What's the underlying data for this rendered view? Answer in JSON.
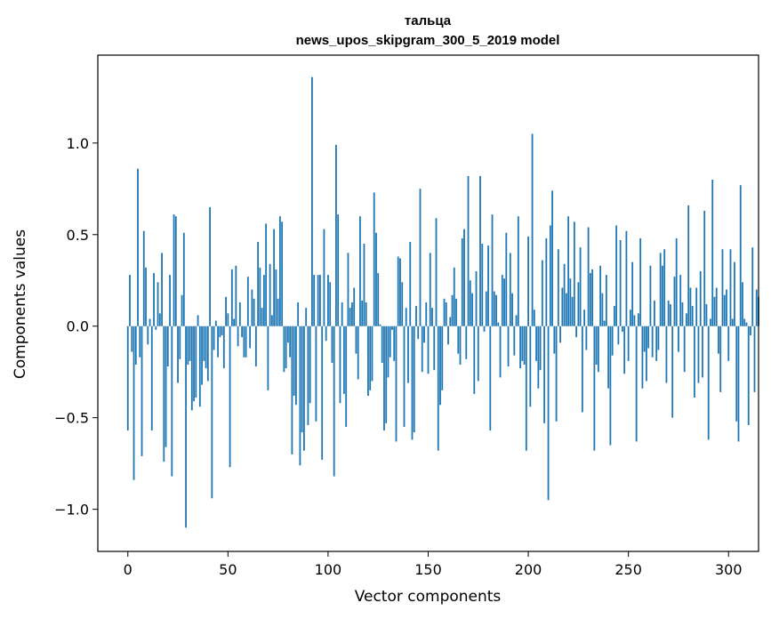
{
  "chart_data": {
    "type": "bar",
    "title": "тальца",
    "subtitle": "news_upos_skipgram_300_5_2019 model",
    "xlabel": "Vector components",
    "ylabel": "Components values",
    "xlim": [
      -15,
      315
    ],
    "ylim": [
      -1.23,
      1.48
    ],
    "xticks": [
      0,
      50,
      100,
      150,
      200,
      250,
      300
    ],
    "xtick_labels": [
      "0",
      "50",
      "100",
      "150",
      "200",
      "250",
      "300"
    ],
    "yticks": [
      -1.0,
      -0.5,
      0.0,
      0.5,
      1.0
    ],
    "ytick_labels": [
      "−1.0",
      "−0.5",
      "0.0",
      "0.5",
      "1.0"
    ],
    "grid": false,
    "bar_color": "#1f77b4",
    "x_start": 0,
    "values": [
      -0.57,
      0.28,
      -0.14,
      -0.84,
      -0.21,
      0.86,
      -0.17,
      -0.71,
      0.52,
      0.32,
      -0.1,
      0.04,
      -0.57,
      0.29,
      -0.02,
      0.24,
      0.07,
      0.4,
      -0.74,
      -0.66,
      -0.22,
      0.28,
      -0.82,
      0.61,
      0.6,
      -0.31,
      -0.18,
      0.17,
      0.51,
      -1.1,
      -0.21,
      -0.19,
      -0.46,
      -0.41,
      -0.39,
      0.06,
      -0.44,
      -0.32,
      -0.19,
      -0.23,
      -0.3,
      0.65,
      -0.94,
      -0.13,
      0.03,
      -0.17,
      -0.06,
      -0.05,
      -0.23,
      0.16,
      0.07,
      -0.77,
      0.31,
      0.04,
      0.33,
      -0.11,
      0.13,
      -0.06,
      -0.17,
      -0.17,
      0.27,
      -0.12,
      0.2,
      0.15,
      -0.22,
      0.46,
      0.32,
      0.1,
      0.28,
      0.56,
      -0.35,
      0.34,
      0.06,
      0.53,
      0.31,
      0.15,
      0.6,
      0.57,
      -0.25,
      -0.23,
      -0.09,
      -0.17,
      -0.7,
      -0.38,
      -0.43,
      0.13,
      -0.76,
      -0.58,
      -0.68,
      0.1,
      -0.54,
      -0.42,
      1.36,
      0.28,
      -0.52,
      0.28,
      0.28,
      -0.73,
      0.53,
      -0.08,
      0.28,
      0.24,
      -0.2,
      -0.82,
      0.99,
      0.61,
      -0.42,
      0.13,
      -0.37,
      -0.55,
      0.4,
      0.1,
      0.13,
      0.21,
      -0.15,
      -0.29,
      0.6,
      0.14,
      0.45,
      0.13,
      -0.38,
      -0.35,
      -0.3,
      0.73,
      0.51,
      0.29,
      0.01,
      -0.2,
      -0.57,
      -0.53,
      -0.28,
      -0.17,
      -0.02,
      -0.19,
      -0.63,
      0.38,
      0.37,
      0.24,
      -0.55,
      0.1,
      -0.31,
      0.46,
      -0.62,
      -0.58,
      0.11,
      -0.07,
      0.75,
      -0.25,
      -0.09,
      0.13,
      -0.26,
      0.4,
      0.1,
      -0.24,
      0.59,
      -0.68,
      -0.43,
      -0.35,
      0.15,
      0.13,
      -0.1,
      0.05,
      0.17,
      0.32,
      0.15,
      -0.15,
      -0.21,
      0.48,
      0.53,
      -0.18,
      0.82,
      0.25,
      0.18,
      -0.37,
      0.3,
      -0.3,
      0.82,
      0.45,
      -0.03,
      0.19,
      0.44,
      -0.57,
      0.61,
      0.19,
      0.17,
      0.02,
      -0.28,
      0.28,
      0.26,
      0.51,
      -0.22,
      0.4,
      0.18,
      -0.16,
      0.06,
      0.6,
      -0.23,
      -0.19,
      -0.21,
      -0.68,
      0.49,
      -0.44,
      1.05,
      0.09,
      -0.19,
      -0.34,
      -0.24,
      0.36,
      -0.53,
      0.48,
      -0.95,
      0.55,
      0.74,
      -0.15,
      -0.52,
      0.42,
      -0.09,
      0.21,
      0.34,
      0.18,
      0.6,
      0.26,
      0.16,
      0.57,
      -0.06,
      0.24,
      0.43,
      -0.47,
      0.09,
      -0.13,
      0.54,
      0.29,
      0.31,
      -0.68,
      -0.21,
      -0.25,
      0.33,
      0.18,
      0.03,
      0.28,
      -0.34,
      -0.65,
      -0.16,
      0.11,
      0.55,
      -0.1,
      0.47,
      -0.03,
      -0.26,
      0.52,
      -0.19,
      0.09,
      0.35,
      0.06,
      -0.63,
      0.07,
      0.48,
      -0.34,
      -0.14,
      -0.3,
      -0.12,
      0.33,
      -0.17,
      0.14,
      -0.19,
      -0.13,
      0.4,
      0.33,
      0.42,
      -0.31,
      0.14,
      0.12,
      -0.5,
      0.27,
      0.48,
      -0.14,
      0.28,
      0.13,
      -0.25,
      0.07,
      0.66,
      0.21,
      0.11,
      -0.39,
      0.21,
      -0.31,
      0.3,
      -0.28,
      0.63,
      0.12,
      -0.62,
      0.04,
      0.8,
      0.16,
      0.21,
      -0.15,
      -0.36,
      0.42,
      0.17,
      0.2,
      -0.19,
      0.42,
      0.04,
      0.35,
      -0.52,
      -0.63,
      0.77,
      0.24,
      0.04,
      0.02,
      -0.54,
      -0.05,
      0.43,
      -0.36,
      0.2,
      0.16
    ]
  }
}
